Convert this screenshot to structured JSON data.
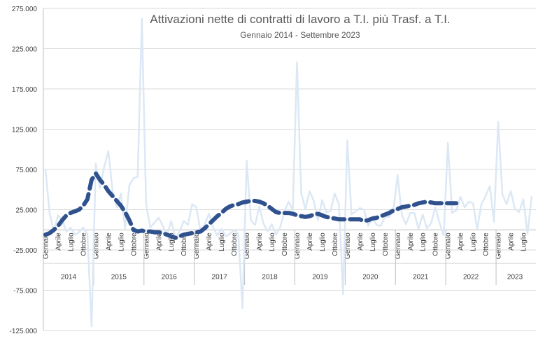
{
  "chart_data": {
    "type": "line",
    "title": "Attivazioni nette di contratti di lavoro a T.I. più Trasf. a T.I.",
    "subtitle": "Gennaio 2014 - Settembre 2023",
    "ylim": [
      -125000,
      275000
    ],
    "y_ticks": [
      275000,
      225000,
      175000,
      125000,
      75000,
      25000,
      -25000,
      -75000,
      -125000
    ],
    "y_tick_labels": [
      "275.000",
      "225.000",
      "175.000",
      "125.000",
      "75.000",
      "25.000",
      "-25.000",
      "-75.000",
      "-125.000"
    ],
    "month_labels": [
      "Gennaio",
      "Aprile",
      "Luglio",
      "Ottobre"
    ],
    "years": [
      "2014",
      "2015",
      "2016",
      "2017",
      "2018",
      "2019",
      "2020",
      "2021",
      "2022",
      "2023"
    ],
    "gridlines": "horizontal",
    "series": [
      {
        "type": "monthly",
        "color": "#dce8f5",
        "values": [
          75000,
          20000,
          -1000,
          18000,
          12000,
          -2000,
          3000,
          -6000,
          -3000,
          3000,
          -5000,
          -120000,
          82000,
          52000,
          78000,
          98000,
          48000,
          28000,
          45000,
          2000,
          55000,
          64000,
          66000,
          262000,
          32000,
          3000,
          9000,
          15000,
          5000,
          -6000,
          11000,
          -10000,
          -2000,
          11000,
          6000,
          32000,
          28000,
          -2000,
          7000,
          20000,
          3000,
          -7000,
          1000,
          -8000,
          -5000,
          0,
          -5000,
          -97000,
          86000,
          12000,
          6000,
          29000,
          8000,
          -2000,
          7000,
          -6000,
          3000,
          23000,
          35000,
          24000,
          208000,
          46000,
          26000,
          48000,
          36000,
          12000,
          37000,
          22000,
          23000,
          45000,
          32000,
          -80000,
          111000,
          19000,
          23000,
          27000,
          25000,
          5000,
          15000,
          6000,
          5000,
          16000,
          16000,
          24000,
          68000,
          19000,
          7000,
          21000,
          21000,
          1000,
          19000,
          2000,
          8000,
          28000,
          9000,
          -7000,
          108000,
          21000,
          24000,
          41000,
          28000,
          35000,
          33000,
          1000,
          32000,
          42000,
          54000,
          10000,
          134000,
          44000,
          32000,
          48000,
          26000,
          22000,
          38000,
          -5000,
          42000
        ]
      },
      {
        "type": "trend",
        "color": "#2f528f",
        "values": [
          -6000,
          -4000,
          0,
          5000,
          12000,
          18000,
          21000,
          23000,
          25000,
          30000,
          38000,
          62000,
          70000,
          62000,
          56000,
          48000,
          42000,
          36000,
          30000,
          22000,
          12000,
          0,
          -2000,
          -1000,
          -2000,
          -2000,
          -3000,
          -3000,
          -4000,
          -6000,
          -8000,
          -10000,
          -8000,
          -6000,
          -5000,
          -4000,
          -3000,
          -2000,
          2000,
          7000,
          12000,
          17000,
          21000,
          26000,
          29000,
          31000,
          32000,
          34000,
          35000,
          36000,
          36000,
          35000,
          33000,
          30000,
          26000,
          22000,
          21000,
          21000,
          21000,
          20000,
          18000,
          17000,
          16000,
          17000,
          19000,
          20000,
          18000,
          16000,
          15000,
          14000,
          13000,
          13000,
          13000,
          13000,
          13000,
          13000,
          11000,
          12000,
          14000,
          15000,
          17000,
          19000,
          21000,
          24000,
          26000,
          28000,
          29000,
          30000,
          31000,
          33000,
          34000,
          35000,
          34000,
          33000,
          33000,
          33000,
          33000,
          33000,
          33000
        ]
      }
    ]
  }
}
